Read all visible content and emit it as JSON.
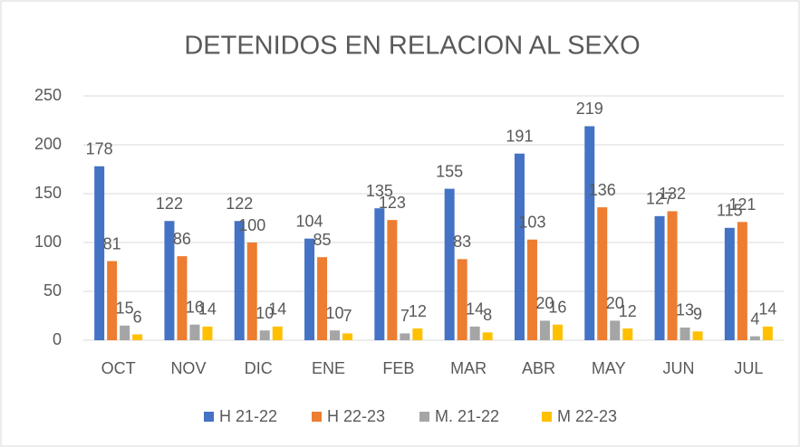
{
  "chart_data": {
    "type": "bar",
    "title": "DETENIDOS EN RELACION AL SEXO",
    "categories": [
      "OCT",
      "NOV",
      "DIC",
      "ENE",
      "FEB",
      "MAR",
      "ABR",
      "MAY",
      "JUN",
      "JUL"
    ],
    "series": [
      {
        "name": "H 21-22",
        "color": "#4472c4",
        "values": [
          178,
          122,
          122,
          104,
          135,
          155,
          191,
          219,
          127,
          115
        ]
      },
      {
        "name": "H 22-23",
        "color": "#ed7d31",
        "values": [
          81,
          86,
          100,
          85,
          123,
          83,
          103,
          136,
          132,
          121
        ]
      },
      {
        "name": "M. 21-22",
        "color": "#a5a5a5",
        "values": [
          15,
          16,
          10,
          10,
          7,
          14,
          20,
          20,
          13,
          4
        ]
      },
      {
        "name": "M 22-23",
        "color": "#ffc000",
        "values": [
          6,
          14,
          14,
          7,
          12,
          8,
          16,
          12,
          9,
          14
        ]
      }
    ],
    "ylim": [
      0,
      250
    ],
    "yticks": [
      0,
      50,
      100,
      150,
      200,
      250
    ],
    "grid": true,
    "legend": "bottom"
  }
}
